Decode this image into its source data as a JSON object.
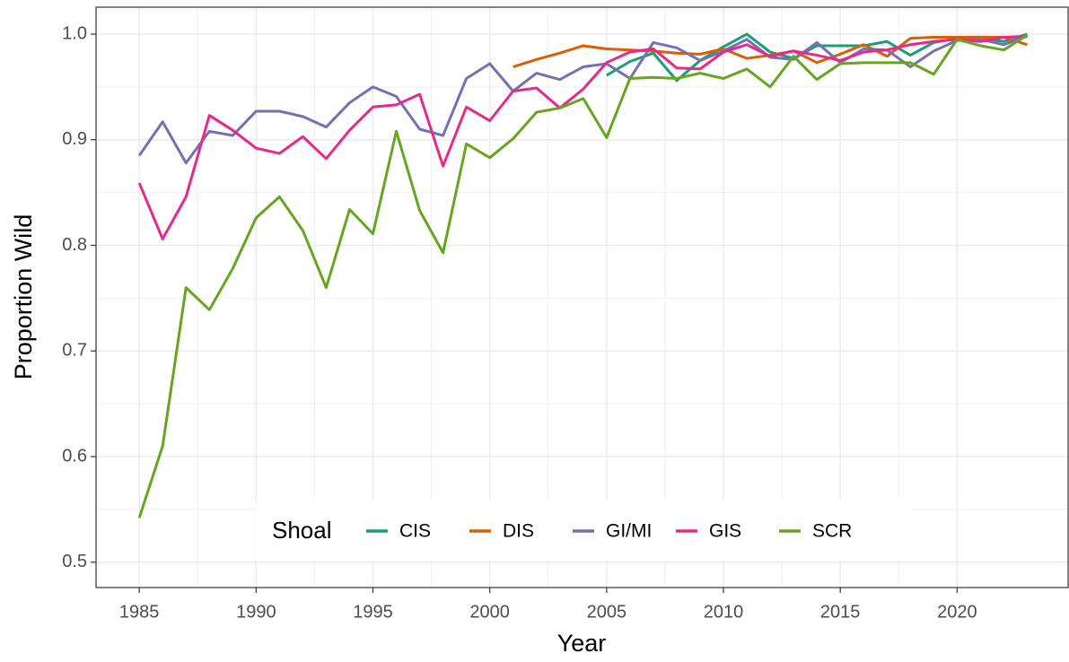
{
  "chart_data": {
    "type": "line",
    "xlabel": "Year",
    "ylabel": "Proportion Wild",
    "x": [
      1985,
      1986,
      1987,
      1988,
      1989,
      1990,
      1991,
      1992,
      1993,
      1994,
      1995,
      1996,
      1997,
      1998,
      1999,
      2000,
      2001,
      2002,
      2003,
      2004,
      2005,
      2006,
      2007,
      2008,
      2009,
      2010,
      2011,
      2012,
      2013,
      2014,
      2015,
      2016,
      2017,
      2018,
      2019,
      2020,
      2021,
      2022,
      2023
    ],
    "xlim": [
      1983.15,
      2024.75
    ],
    "xticks": [
      1985,
      1990,
      1995,
      2000,
      2005,
      2010,
      2015,
      2020
    ],
    "ylim": [
      0.476,
      1.0255
    ],
    "yticks": [
      0.5,
      0.6,
      0.7,
      0.8,
      0.9,
      {
        "value": 1.0,
        "label": "1.0"
      }
    ],
    "grid": true,
    "legend_position": "bottom",
    "legend_title": "Shoal",
    "series": [
      {
        "name": "CIS",
        "color": "#1b9e77",
        "values": [
          null,
          null,
          null,
          null,
          null,
          null,
          null,
          null,
          null,
          null,
          null,
          null,
          null,
          null,
          null,
          null,
          null,
          null,
          null,
          null,
          0.961,
          0.974,
          0.982,
          0.956,
          0.975,
          0.988,
          1.0,
          0.983,
          0.977,
          0.989,
          0.989,
          0.989,
          0.993,
          0.98,
          0.992,
          0.996,
          0.996,
          0.993,
          1.0
        ]
      },
      {
        "name": "DIS",
        "color": "#d95f02",
        "values": [
          null,
          null,
          null,
          null,
          null,
          null,
          null,
          null,
          null,
          null,
          null,
          null,
          null,
          null,
          null,
          null,
          0.969,
          0.976,
          0.982,
          0.989,
          0.986,
          0.985,
          0.984,
          0.982,
          0.981,
          0.986,
          0.977,
          0.98,
          0.984,
          0.973,
          0.981,
          0.99,
          0.979,
          0.996,
          0.997,
          0.997,
          0.997,
          0.997,
          0.99
        ]
      },
      {
        "name": "GI/MI",
        "color": "#7570b3",
        "values": [
          0.885,
          0.917,
          0.878,
          0.908,
          0.904,
          0.927,
          0.927,
          0.922,
          0.912,
          0.935,
          0.95,
          0.941,
          0.91,
          0.904,
          0.958,
          0.972,
          0.946,
          0.963,
          0.957,
          0.969,
          0.972,
          0.958,
          0.992,
          0.987,
          0.975,
          0.984,
          0.995,
          0.978,
          0.976,
          0.992,
          0.973,
          0.986,
          0.985,
          0.969,
          0.984,
          0.994,
          0.995,
          0.99,
          0.998
        ]
      },
      {
        "name": "GIS",
        "color": "#e7298a",
        "values": [
          0.859,
          0.806,
          0.846,
          0.923,
          0.909,
          0.892,
          0.887,
          0.903,
          0.882,
          0.909,
          0.931,
          0.933,
          0.943,
          0.875,
          0.931,
          0.918,
          0.946,
          0.949,
          0.93,
          0.948,
          0.973,
          0.983,
          0.986,
          0.968,
          0.967,
          0.983,
          0.99,
          0.979,
          0.984,
          0.98,
          0.975,
          0.983,
          0.985,
          0.99,
          0.993,
          0.995,
          0.993,
          0.997,
          0.998
        ]
      },
      {
        "name": "SCR",
        "color": "#66a61e",
        "values": [
          0.542,
          0.61,
          0.76,
          0.739,
          0.778,
          0.826,
          0.846,
          0.814,
          0.76,
          0.834,
          0.811,
          0.908,
          0.833,
          0.793,
          0.896,
          0.883,
          0.901,
          0.926,
          0.93,
          0.939,
          0.902,
          0.958,
          0.959,
          0.958,
          0.963,
          0.958,
          0.967,
          0.95,
          0.979,
          0.957,
          0.972,
          0.973,
          0.973,
          0.973,
          0.962,
          0.995,
          0.989,
          0.985,
          0.999
        ]
      }
    ]
  }
}
